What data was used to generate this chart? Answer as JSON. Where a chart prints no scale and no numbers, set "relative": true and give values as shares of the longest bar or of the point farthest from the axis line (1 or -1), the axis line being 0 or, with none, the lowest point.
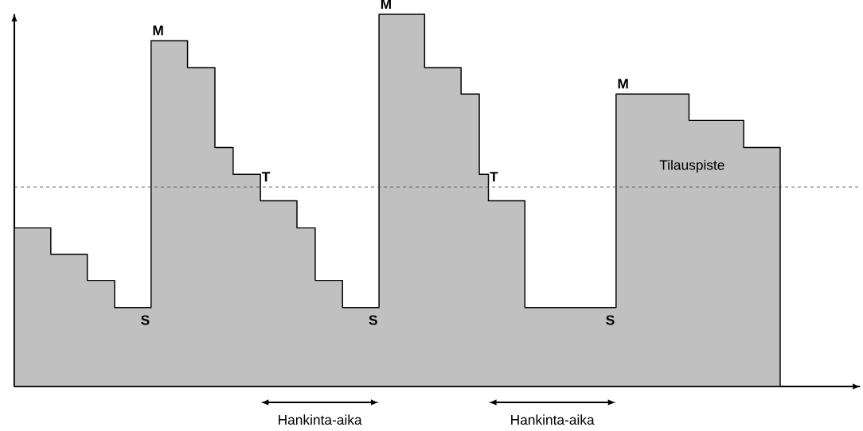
{
  "chart_data": {
    "type": "step",
    "relative": true,
    "categories": [
      null,
      null,
      null,
      null,
      null,
      null,
      null,
      null,
      null,
      null,
      null,
      null,
      null,
      null,
      null,
      null,
      null,
      null,
      null,
      null,
      null,
      null,
      null,
      null,
      null,
      null,
      null,
      null,
      null,
      null,
      null,
      null,
      null,
      null,
      null,
      null,
      null,
      null,
      null,
      null,
      null,
      null,
      null,
      null,
      null,
      null,
      null,
      null,
      null,
      null,
      null,
      null,
      null,
      null,
      null,
      null,
      null,
      null,
      null,
      null,
      null,
      null,
      null,
      null,
      null,
      null,
      null,
      null,
      null,
      null,
      null,
      null,
      null,
      null,
      null,
      null,
      null,
      null,
      null,
      null,
      null,
      null,
      null,
      null,
      null
    ],
    "series": [
      {
        "type": "area",
        "color": "#c0c0c0",
        "values": [
          0.426,
          0.426,
          0.426,
          0.426,
          0.355,
          0.355,
          0.355,
          0.355,
          0.285,
          0.285,
          0.285,
          0.212,
          0.212,
          0.212,
          0.212,
          0.929,
          0.929,
          0.929,
          0.929,
          0.857,
          0.857,
          0.857,
          0.642,
          0.642,
          0.57,
          0.57,
          0.57,
          0.499,
          0.499,
          0.499,
          0.499,
          0.426,
          0.426,
          0.285,
          0.285,
          0.285,
          0.212,
          0.212,
          0.212,
          0.212,
          1,
          1,
          1,
          1,
          1,
          0.857,
          0.857,
          0.857,
          0.857,
          0.786,
          0.786,
          0.57,
          0.499,
          0.499,
          0.499,
          0.499,
          0.212,
          0.212,
          0.212,
          0.212,
          0.212,
          0.212,
          0.212,
          0.212,
          0.212,
          0.212,
          0.786,
          0.786,
          0.786,
          0.786,
          0.786,
          0.786,
          0.786,
          0.786,
          0.715,
          0.715,
          0.715,
          0.715,
          0.715,
          0.715,
          0.642,
          0.642,
          0.642,
          0.642,
          0.642
        ]
      }
    ],
    "ref_lines": [
      {
        "axis": "y",
        "value": 0.536,
        "label": "Tilauspiste",
        "color": "#404040",
        "line_style": "dashed"
      }
    ],
    "annotations": [
      "M",
      "S",
      "T",
      "M",
      "S",
      "T",
      "M",
      "S",
      "Hankinta-aika",
      "Hankinta-aika"
    ]
  }
}
